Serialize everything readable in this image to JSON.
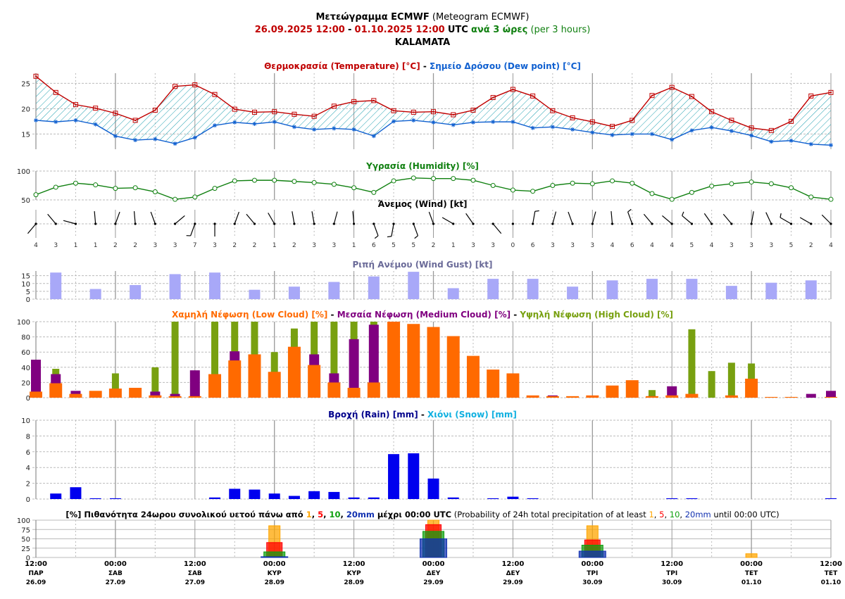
{
  "header": {
    "line1_gr": "Μετεώγραμμα ECMWF",
    "line1_en": "(Meteogram ECMWF)",
    "date_from": "26.09.2025 12:00",
    "dash": "-",
    "date_to": "01.10.2025 12:00",
    "utc": "UTC",
    "interval_gr": "ανά 3 ώρες",
    "interval_en": "(per 3 hours)",
    "location": "KALAMATA"
  },
  "colors": {
    "temperature": "#c00000",
    "dew_point": "#1060d0",
    "humidity": "#108010",
    "wind_gust": "#a8a8f8",
    "low_cloud": "#ff6a00",
    "medium_cloud": "#800080",
    "high_cloud": "#78a010",
    "rain": "#0000ee",
    "snow": "#10b0e0",
    "grid": "#bbbbbb",
    "day_line": "#999999",
    "hatch": "#20a0b0",
    "p1": "#ffa500",
    "p5": "#ff0000",
    "p10": "#10a010",
    "p20": "#1030b0"
  },
  "chart_data": [
    {
      "id": "temperature",
      "type": "line",
      "title_parts": [
        {
          "text": "Θερμοκρασία (Temperature) [°C]",
          "color": "#c00000"
        },
        {
          "text": " - ",
          "color": "#000000"
        },
        {
          "text": "Σημείο Δρόσου (Dew point) [°C]",
          "color": "#1060d0"
        }
      ],
      "y_ticks": [
        "15",
        "20",
        "25"
      ],
      "ylim": [
        12,
        27
      ],
      "series": [
        {
          "name": "Temperature",
          "values": [
            26.4,
            23.2,
            20.8,
            20.1,
            19.1,
            17.7,
            19.7,
            24.4,
            24.7,
            22.8,
            19.9,
            19.3,
            19.4,
            18.9,
            18.5,
            20.5,
            21.4,
            21.6,
            19.6,
            19.3,
            19.4,
            18.8,
            19.7,
            22.2,
            23.8,
            22.5,
            19.6,
            18.2,
            17.4,
            16.5,
            17.7,
            22.6,
            24.2,
            22.4,
            19.4,
            17.7,
            16.2,
            15.7,
            17.5,
            22.5,
            23.2
          ]
        },
        {
          "name": "Dew point",
          "values": [
            17.7,
            17.4,
            17.7,
            16.9,
            14.6,
            13.8,
            14.0,
            13.1,
            14.3,
            16.7,
            17.3,
            17.0,
            17.4,
            16.4,
            15.9,
            16.1,
            15.9,
            14.6,
            17.5,
            17.7,
            17.3,
            16.8,
            17.3,
            17.4,
            17.4,
            16.2,
            16.4,
            15.9,
            15.3,
            14.8,
            15.0,
            15.0,
            13.9,
            15.7,
            16.3,
            15.6,
            14.7,
            13.5,
            13.7,
            13.0,
            12.8
          ]
        }
      ]
    },
    {
      "id": "humidity",
      "type": "line",
      "title": "Υγρασία (Humidity) [%]",
      "y_ticks": [
        "50",
        "100"
      ],
      "ylim": [
        50,
        100
      ],
      "values": [
        59,
        72,
        79,
        76,
        70,
        71,
        64,
        51,
        55,
        70,
        83,
        84,
        84,
        82,
        80,
        77,
        71,
        63,
        83,
        88,
        87,
        87,
        84,
        75,
        67,
        65,
        75,
        79,
        78,
        83,
        79,
        61,
        51,
        63,
        74,
        78,
        81,
        78,
        71,
        55,
        51
      ]
    },
    {
      "id": "wind",
      "type": "table",
      "title": "Άνεμος (Wind) [kt]",
      "speeds": [
        "4",
        "3",
        "1",
        "1",
        "2",
        "2",
        "3",
        "3",
        "7",
        "3",
        "2",
        "2",
        "1",
        "2",
        "3",
        "3",
        "1",
        "6",
        "5",
        "5",
        "2",
        "1",
        "3",
        "3",
        "0",
        "6",
        "3",
        "3",
        "3",
        "4",
        "6",
        "4",
        "4",
        "5",
        "4",
        "3",
        "3",
        "3",
        "5",
        "2",
        "4"
      ],
      "directions_deg": [
        220,
        320,
        285,
        355,
        20,
        355,
        340,
        50,
        200,
        180,
        20,
        320,
        330,
        350,
        350,
        15,
        355,
        160,
        190,
        160,
        340,
        300,
        325,
        140,
        0,
        10,
        15,
        340,
        15,
        355,
        340,
        320,
        310,
        310,
        325,
        320,
        10,
        335,
        300,
        300,
        315
      ]
    },
    {
      "id": "wind_gust",
      "type": "bar",
      "title": "Ριπή Ανέμου (Wind Gust) [kt]",
      "y_ticks": [
        "0",
        "5",
        "10",
        "15"
      ],
      "ylim": [
        0,
        18
      ],
      "values": [
        null,
        17,
        null,
        6.5,
        null,
        9,
        null,
        16,
        null,
        17,
        null,
        6,
        null,
        8,
        null,
        11,
        null,
        14.5,
        null,
        17.5,
        null,
        7,
        null,
        13,
        null,
        13,
        null,
        8,
        null,
        12,
        null,
        13,
        null,
        13,
        null,
        8.5,
        null,
        10.5,
        null,
        12
      ]
    },
    {
      "id": "clouds",
      "type": "bar",
      "title_parts": [
        {
          "text": "Χαμηλή Νέφωση (Low Cloud) [%]",
          "color": "#ff6a00"
        },
        {
          "text": " - ",
          "color": "#000000"
        },
        {
          "text": "Μεσαία Νέφωση (Medium Cloud) [%]",
          "color": "#800080"
        },
        {
          "text": " - ",
          "color": "#000000"
        },
        {
          "text": "Υψηλή Νέφωση (High Cloud) [%]",
          "color": "#78a010"
        }
      ],
      "y_ticks": [
        "0",
        "20",
        "40",
        "60",
        "80",
        "100"
      ],
      "ylim": [
        0,
        100
      ],
      "series": [
        {
          "name": "Low Cloud",
          "values": [
            8,
            19,
            5,
            9,
            12,
            13,
            3,
            2,
            2,
            31,
            49,
            57,
            34,
            67,
            43,
            20,
            13,
            20,
            100,
            97,
            93,
            81,
            55,
            37,
            32,
            3,
            2,
            2,
            3,
            16,
            23,
            2,
            3,
            5,
            0,
            3,
            25,
            1,
            1,
            0,
            1
          ]
        },
        {
          "name": "Medium Cloud",
          "values": [
            50,
            31,
            9,
            0,
            0,
            0,
            8,
            5,
            36,
            0,
            61,
            0,
            0,
            0,
            57,
            32,
            77,
            96,
            0,
            0,
            0,
            0,
            0,
            0,
            0,
            0,
            3,
            0,
            0,
            0,
            0,
            2,
            15,
            0,
            0,
            0,
            0,
            0,
            0,
            5,
            9
          ]
        },
        {
          "name": "High Cloud",
          "values": [
            0,
            38,
            0,
            0,
            32,
            0,
            40,
            100,
            0,
            100,
            100,
            100,
            60,
            91,
            100,
            100,
            100,
            100,
            100,
            0,
            0,
            0,
            0,
            0,
            0,
            0,
            0,
            0,
            0,
            0,
            0,
            10,
            0,
            90,
            35,
            46,
            45,
            0,
            0,
            0,
            0
          ]
        }
      ]
    },
    {
      "id": "precipitation",
      "type": "bar",
      "title_parts": [
        {
          "text": "Βροχή (Rain) [mm]",
          "color": "#00008b"
        },
        {
          "text": " - ",
          "color": "#000000"
        },
        {
          "text": "Χιόνι (Snow) [mm]",
          "color": "#10b0e0"
        }
      ],
      "y_ticks": [
        "0",
        "2",
        "4",
        "6",
        "8",
        "10"
      ],
      "ylim": [
        0,
        10
      ],
      "series": [
        {
          "name": "Rain",
          "values": [
            0,
            0.7,
            1.5,
            0.1,
            0.1,
            0,
            0,
            0,
            0,
            0.2,
            1.3,
            1.2,
            0.7,
            0.4,
            1.0,
            0.9,
            0.2,
            0.2,
            5.7,
            5.8,
            2.6,
            0.2,
            0,
            0.1,
            0.3,
            0.1,
            0,
            0,
            0,
            0,
            0,
            0,
            0.1,
            0.1,
            0,
            0,
            0,
            0,
            0,
            0,
            0.1
          ]
        },
        {
          "name": "Snow",
          "values": [
            0,
            0,
            0,
            0,
            0,
            0,
            0,
            0,
            0,
            0,
            0,
            0,
            0,
            0,
            0,
            0,
            0,
            0,
            0,
            0,
            0,
            0,
            0,
            0,
            0,
            0,
            0,
            0,
            0,
            0,
            0,
            0,
            0,
            0,
            0,
            0,
            0,
            0,
            0,
            0,
            0
          ]
        }
      ]
    },
    {
      "id": "probability",
      "type": "bar",
      "title_parts": [
        {
          "text": "[%] Πιθανότητα 24ωρου συνολικού υετού πάνω από ",
          "color": "#000000",
          "bold": true
        },
        {
          "text": "1",
          "color": "#ffa500",
          "bold": true
        },
        {
          "text": ", ",
          "color": "#000000",
          "bold": true
        },
        {
          "text": "5",
          "color": "#ff0000",
          "bold": true
        },
        {
          "text": ", ",
          "color": "#000000",
          "bold": true
        },
        {
          "text": "10",
          "color": "#10a010",
          "bold": true
        },
        {
          "text": ", ",
          "color": "#000000",
          "bold": true
        },
        {
          "text": "20mm",
          "color": "#1030b0",
          "bold": true
        },
        {
          "text": " μέχρι 00:00 UTC",
          "color": "#000000",
          "bold": true
        },
        {
          "text": " (Probability of 24h total precipitation of at least ",
          "color": "#000000",
          "bold": false
        },
        {
          "text": "1",
          "color": "#ffa500",
          "bold": false
        },
        {
          "text": ", ",
          "color": "#000000",
          "bold": false
        },
        {
          "text": "5",
          "color": "#ff0000",
          "bold": false
        },
        {
          "text": ", ",
          "color": "#000000",
          "bold": false
        },
        {
          "text": "10",
          "color": "#10a010",
          "bold": false
        },
        {
          "text": ", ",
          "color": "#000000",
          "bold": false
        },
        {
          "text": "20mm",
          "color": "#1030b0",
          "bold": false
        },
        {
          "text": " until 00:00 UTC)",
          "color": "#000000",
          "bold": false
        }
      ],
      "y_ticks": [
        "0",
        "25",
        "50",
        "75",
        "100"
      ],
      "ylim": [
        0,
        100
      ],
      "days": [
        {
          "step": 12,
          "p1": 85,
          "p5": 40,
          "p10": 15,
          "p20": 2
        },
        {
          "step": 20,
          "p1": 100,
          "p5": 88,
          "p10": 70,
          "p20": 50
        },
        {
          "step": 28,
          "p1": 85,
          "p5": 47,
          "p10": 33,
          "p20": 17
        },
        {
          "step": 36,
          "p1": 10,
          "p5": 0,
          "p10": 0,
          "p20": 0
        }
      ]
    }
  ],
  "x_axis": {
    "labels": [
      {
        "step": 0,
        "time": "12:00",
        "day": "ΠΑΡ",
        "date": "26.09"
      },
      {
        "step": 4,
        "time": "00:00",
        "day": "ΣΑΒ",
        "date": "27.09"
      },
      {
        "step": 8,
        "time": "12:00",
        "day": "ΣΑΒ",
        "date": "27.09"
      },
      {
        "step": 12,
        "time": "00:00",
        "day": "ΚΥΡ",
        "date": "28.09"
      },
      {
        "step": 16,
        "time": "12:00",
        "day": "ΚΥΡ",
        "date": "28.09"
      },
      {
        "step": 20,
        "time": "00:00",
        "day": "ΔΕΥ",
        "date": "29.09"
      },
      {
        "step": 24,
        "time": "12:00",
        "day": "ΔΕΥ",
        "date": "29.09"
      },
      {
        "step": 28,
        "time": "00:00",
        "day": "ΤΡΙ",
        "date": "30.09"
      },
      {
        "step": 32,
        "time": "12:00",
        "day": "ΤΡΙ",
        "date": "30.09"
      },
      {
        "step": 36,
        "time": "00:00",
        "day": "ΤΕΤ",
        "date": "01.10"
      },
      {
        "step": 40,
        "time": "12:00",
        "day": "ΤΕΤ",
        "date": "01.10"
      }
    ]
  }
}
